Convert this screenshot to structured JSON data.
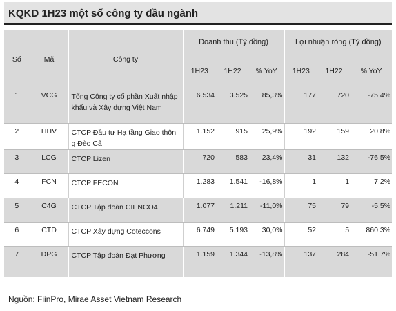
{
  "title": "KQKD 1H23 một số công ty đầu ngành",
  "headers": {
    "so": "Số",
    "ma": "Mã",
    "cong_ty": "Công ty",
    "doanh_thu": "Doanh thu  (Tỷ đồng)",
    "loi_nhuan": "Lợi nhuận ròng  (Tỷ đồng)",
    "h1_23": "1H23",
    "h1_22": "1H22",
    "yoy": "% YoY"
  },
  "rows": [
    {
      "so": "1",
      "ma": "VCG",
      "cong_ty": "Tổng Công ty cổ phần Xuất nhập khẩu và Xây dựng Việt Nam",
      "dt_1h23": "6.534",
      "dt_1h22": "3.525",
      "dt_yoy": "85,3%",
      "ln_1h23": "177",
      "ln_1h22": "720",
      "ln_yoy": "-75,4%"
    },
    {
      "so": "2",
      "ma": "HHV",
      "cong_ty": "CTCP Đầu tư Hạ tầng Giao thông Đèo Cả",
      "dt_1h23": "1.152",
      "dt_1h22": "915",
      "dt_yoy": "25,9%",
      "ln_1h23": "192",
      "ln_1h22": "159",
      "ln_yoy": "20,8%"
    },
    {
      "so": "3",
      "ma": "LCG",
      "cong_ty": "CTCP Lizen",
      "dt_1h23": "720",
      "dt_1h22": "583",
      "dt_yoy": "23,4%",
      "ln_1h23": "31",
      "ln_1h22": "132",
      "ln_yoy": "-76,5%"
    },
    {
      "so": "4",
      "ma": "FCN",
      "cong_ty": "CTCP FECON",
      "dt_1h23": "1.283",
      "dt_1h22": "1.541",
      "dt_yoy": "-16,8%",
      "ln_1h23": "1",
      "ln_1h22": "1",
      "ln_yoy": "7,2%"
    },
    {
      "so": "5",
      "ma": "C4G",
      "cong_ty": "CTCP Tập đoàn CIENCO4",
      "dt_1h23": "1.077",
      "dt_1h22": "1.211",
      "dt_yoy": "-11,0%",
      "ln_1h23": "75",
      "ln_1h22": "79",
      "ln_yoy": "-5,5%"
    },
    {
      "so": "6",
      "ma": "CTD",
      "cong_ty": "CTCP Xây dựng Coteccons",
      "dt_1h23": "6.749",
      "dt_1h22": "5.193",
      "dt_yoy": "30,0%",
      "ln_1h23": "52",
      "ln_1h22": "5",
      "ln_yoy": "860,3%"
    },
    {
      "so": "7",
      "ma": "DPG",
      "cong_ty": "CTCP Tập đoàn Đạt Phương",
      "dt_1h23": "1.159",
      "dt_1h22": "1.344",
      "dt_yoy": "-13,8%",
      "ln_1h23": "137",
      "ln_1h22": "284",
      "ln_yoy": "-51,7%"
    }
  ],
  "source": "Nguồn: FiinPro, Mirae Asset Vietnam Research",
  "colors": {
    "header_bg": "#d9d9d9",
    "title_bg": "#e3e3e3",
    "stripe": "#d9d9d9"
  }
}
